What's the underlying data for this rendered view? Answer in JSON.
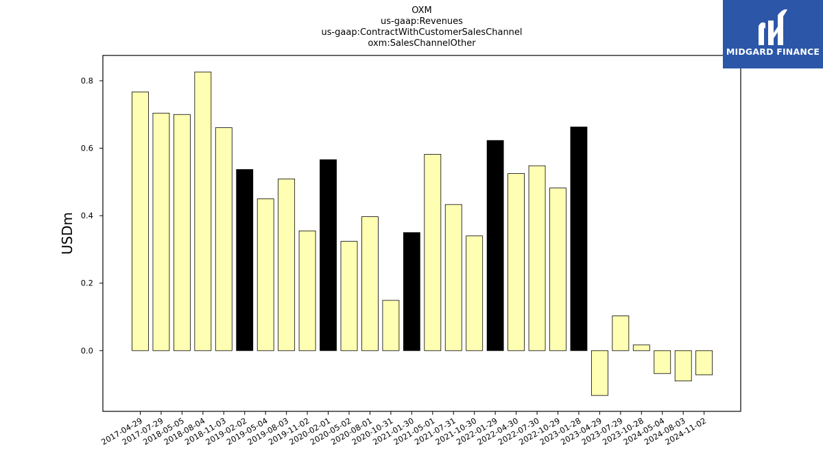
{
  "titles": [
    "OXM",
    "us-gaap:Revenues",
    "us-gaap:ContractWithCustomerSalesChannel",
    "oxm:SalesChannelOther"
  ],
  "logo": {
    "text": "MIDGARD FINANCE",
    "icon": "midgard-logo-icon",
    "background": "#2c57a8"
  },
  "chart_data": {
    "type": "bar",
    "ylabel": "USDm",
    "xlabel": "",
    "ylim": [
      -0.18,
      0.875
    ],
    "yticks": [
      "0.0",
      "0.2",
      "0.4",
      "0.6",
      "0.8"
    ],
    "grid": false,
    "colors": {
      "default": "#ffffb3",
      "highlight": "#000000"
    },
    "categories": [
      "2017-04-29",
      "2017-07-29",
      "2018-05-05",
      "2018-08-04",
      "2018-11-03",
      "2019-02-02",
      "2019-05-04",
      "2019-08-03",
      "2019-11-02",
      "2020-02-01",
      "2020-05-02",
      "2020-08-01",
      "2020-10-31",
      "2021-01-30",
      "2021-05-01",
      "2021-07-31",
      "2021-10-30",
      "2022-01-29",
      "2022-04-30",
      "2022-07-30",
      "2022-10-29",
      "2023-01-28",
      "2023-04-29",
      "2023-07-29",
      "2023-10-28",
      "2024-05-04",
      "2024-08-03",
      "2024-11-02"
    ],
    "values": [
      0.767,
      0.704,
      0.7,
      0.826,
      0.661,
      0.537,
      0.45,
      0.509,
      0.355,
      0.566,
      0.324,
      0.397,
      0.149,
      0.35,
      0.582,
      0.433,
      0.34,
      0.623,
      0.525,
      0.548,
      0.482,
      0.663,
      -0.133,
      0.103,
      0.017,
      -0.068,
      -0.09,
      -0.072
    ],
    "highlighted": [
      false,
      false,
      false,
      false,
      false,
      true,
      false,
      false,
      false,
      true,
      false,
      false,
      false,
      true,
      false,
      false,
      false,
      true,
      false,
      false,
      false,
      true,
      false,
      false,
      false,
      false,
      false,
      false
    ]
  }
}
